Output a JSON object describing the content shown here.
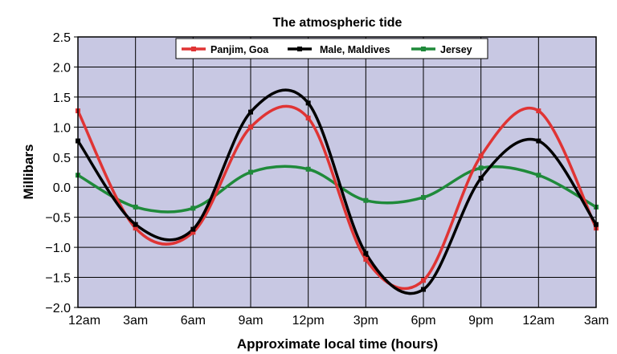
{
  "chart_data": {
    "type": "line",
    "title": "The atmospheric tide",
    "xlabel": "Approximate local time (hours)",
    "ylabel": "Millibars",
    "categories": [
      "12am",
      "3am",
      "6am",
      "9am",
      "12pm",
      "3pm",
      "6pm",
      "9pm",
      "12am",
      "3am"
    ],
    "ylim": [
      -2.0,
      2.5
    ],
    "yticks": [
      "2.5",
      "2.0",
      "1.5",
      "1.0",
      "0.5",
      "0.0",
      "−0.5",
      "−1.0",
      "−1.5",
      "−2.0"
    ],
    "ytick_values": [
      2.5,
      2.0,
      1.5,
      1.0,
      0.5,
      0.0,
      -0.5,
      -1.0,
      -1.5,
      -2.0
    ],
    "grid": true,
    "legend_position": "top",
    "colors": {
      "plot_bg": "#c8c8e3",
      "grid": "#000000"
    },
    "series": [
      {
        "name": "Panjim, Goa",
        "color": "#e03434",
        "values": [
          1.27,
          -0.68,
          -0.75,
          1.0,
          1.15,
          -1.2,
          -1.55,
          0.52,
          1.27,
          -0.68
        ]
      },
      {
        "name": "Male, Maldives",
        "color": "#000000",
        "values": [
          0.77,
          -0.62,
          -0.7,
          1.25,
          1.4,
          -1.1,
          -1.7,
          0.15,
          0.77,
          -0.62
        ]
      },
      {
        "name": "Jersey",
        "color": "#1f8a3a",
        "values": [
          0.2,
          -0.33,
          -0.35,
          0.25,
          0.3,
          -0.22,
          -0.17,
          0.32,
          0.2,
          -0.33
        ]
      }
    ]
  }
}
